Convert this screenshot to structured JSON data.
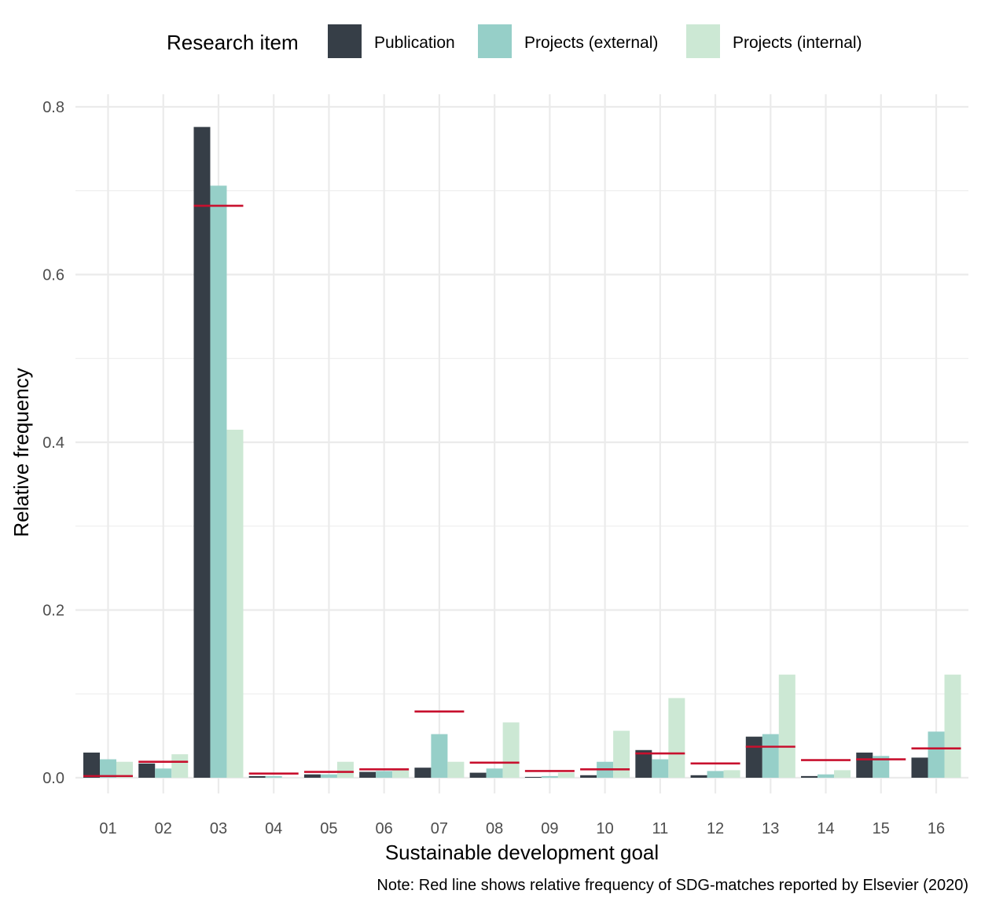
{
  "chart_data": {
    "type": "bar",
    "title": "",
    "xlabel": "Sustainable development goal",
    "ylabel": "Relative frequency",
    "caption": "Note: Red line shows relative frequency of SDG-matches reported by Elsevier (2020)",
    "legend_title": "Research item",
    "legend_position": "top",
    "grid": true,
    "ylim": [
      0,
      0.8
    ],
    "yticks": [
      "0.0",
      "0.2",
      "0.4",
      "0.6",
      "0.8"
    ],
    "categories": [
      "01",
      "02",
      "03",
      "04",
      "05",
      "06",
      "07",
      "08",
      "09",
      "10",
      "11",
      "12",
      "13",
      "14",
      "15",
      "16"
    ],
    "series": [
      {
        "name": "Publication",
        "color": "#363e47",
        "values": [
          0.03,
          0.017,
          0.776,
          0.002,
          0.004,
          0.007,
          0.012,
          0.006,
          0.001,
          0.003,
          0.033,
          0.003,
          0.049,
          0.002,
          0.03,
          0.024
        ]
      },
      {
        "name": "Projects (external)",
        "color": "#96cfc8",
        "values": [
          0.022,
          0.011,
          0.706,
          0.002,
          0.004,
          0.008,
          0.052,
          0.011,
          0.002,
          0.019,
          0.022,
          0.008,
          0.052,
          0.004,
          0.026,
          0.055
        ]
      },
      {
        "name": "Projects (internal)",
        "color": "#cce8d4",
        "values": [
          0.019,
          0.028,
          0.415,
          0.0,
          0.019,
          0.009,
          0.019,
          0.066,
          0.006,
          0.056,
          0.095,
          0.009,
          0.123,
          0.009,
          0.0,
          0.123
        ]
      }
    ],
    "reference_line": {
      "color": "#c8102e",
      "values": [
        0.002,
        0.019,
        0.682,
        0.005,
        0.007,
        0.01,
        0.079,
        0.018,
        0.008,
        0.01,
        0.029,
        0.017,
        0.037,
        0.021,
        0.022,
        0.035
      ]
    }
  }
}
